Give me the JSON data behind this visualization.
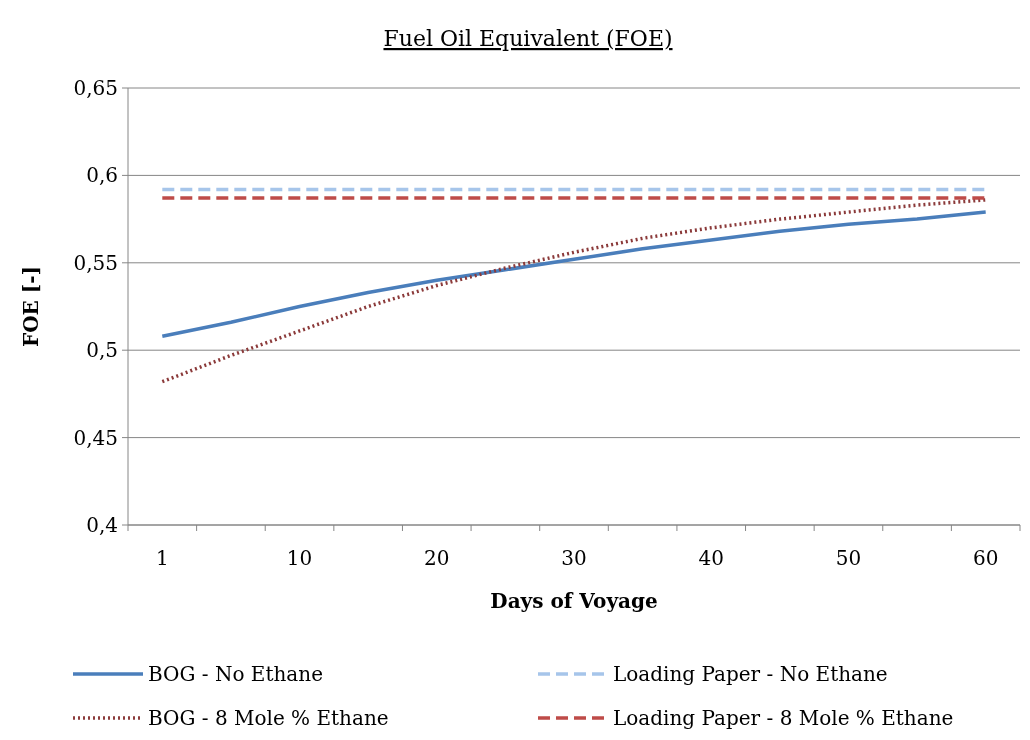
{
  "chart_data": {
    "type": "line",
    "title": "Fuel Oil Equivalent (FOE)",
    "xlabel": "Days of Voyage",
    "ylabel": "FOE [-]",
    "categories": [
      "1",
      null,
      "10",
      null,
      "20",
      null,
      "30",
      null,
      "40",
      null,
      "50",
      null,
      "60"
    ],
    "ylim": [
      0.4,
      0.65
    ],
    "yticks": [
      {
        "value": 0.4,
        "label": "0,4"
      },
      {
        "value": 0.45,
        "label": "0,45"
      },
      {
        "value": 0.5,
        "label": "0,5"
      },
      {
        "value": 0.55,
        "label": "0,55"
      },
      {
        "value": 0.6,
        "label": "0,6"
      },
      {
        "value": 0.65,
        "label": "0,65"
      }
    ],
    "grid": "y",
    "legend": "bottom",
    "marker": "none",
    "series": [
      {
        "name": "BOG - No Ethane",
        "color": "#4a7ebb",
        "line_style": "solid",
        "values": [
          0.508,
          0.516,
          0.525,
          0.533,
          0.54,
          0.546,
          0.552,
          0.558,
          0.563,
          0.568,
          0.572,
          0.575,
          0.579
        ]
      },
      {
        "name": "Loading Paper - No Ethane",
        "color": "#a6c5ea",
        "line_style": "dashed",
        "values": [
          0.592,
          0.592,
          0.592,
          0.592,
          0.592,
          0.592,
          0.592,
          0.592,
          0.592,
          0.592,
          0.592,
          0.592,
          0.592
        ]
      },
      {
        "name": "BOG - 8 Mole % Ethane",
        "color": "#8b3a3a",
        "line_style": "dotted",
        "values": [
          0.482,
          0.497,
          0.511,
          0.525,
          0.537,
          0.547,
          0.556,
          0.564,
          0.57,
          0.575,
          0.579,
          0.583,
          0.586
        ]
      },
      {
        "name": "Loading Paper - 8 Mole % Ethane",
        "color": "#be4b48",
        "line_style": "dashed",
        "values": [
          0.587,
          0.587,
          0.587,
          0.587,
          0.587,
          0.587,
          0.587,
          0.587,
          0.587,
          0.587,
          0.587,
          0.587,
          0.587
        ]
      }
    ]
  }
}
